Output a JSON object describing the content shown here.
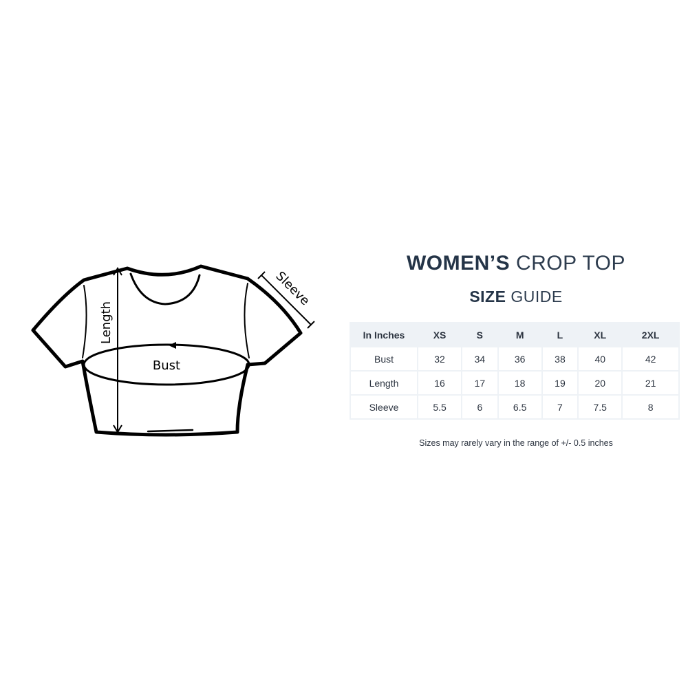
{
  "diagram": {
    "labels": {
      "length": "Length",
      "bust": "Bust",
      "sleeve": "Sleeve"
    }
  },
  "title": {
    "bold": "WOMEN’S",
    "light": "CROP TOP"
  },
  "subtitle": {
    "bold": "SIZE",
    "light": "GUIDE"
  },
  "table": {
    "headers": [
      "In Inches",
      "XS",
      "S",
      "M",
      "L",
      "XL",
      "2XL"
    ],
    "rows": [
      [
        "Bust",
        "32",
        "34",
        "36",
        "38",
        "40",
        "42"
      ],
      [
        "Length",
        "16",
        "17",
        "18",
        "19",
        "20",
        "21"
      ],
      [
        "Sleeve",
        "5.5",
        "6",
        "6.5",
        "7",
        "7.5",
        "8"
      ]
    ]
  },
  "note": "Sizes may rarely vary in the range of +/- 0.5 inches"
}
